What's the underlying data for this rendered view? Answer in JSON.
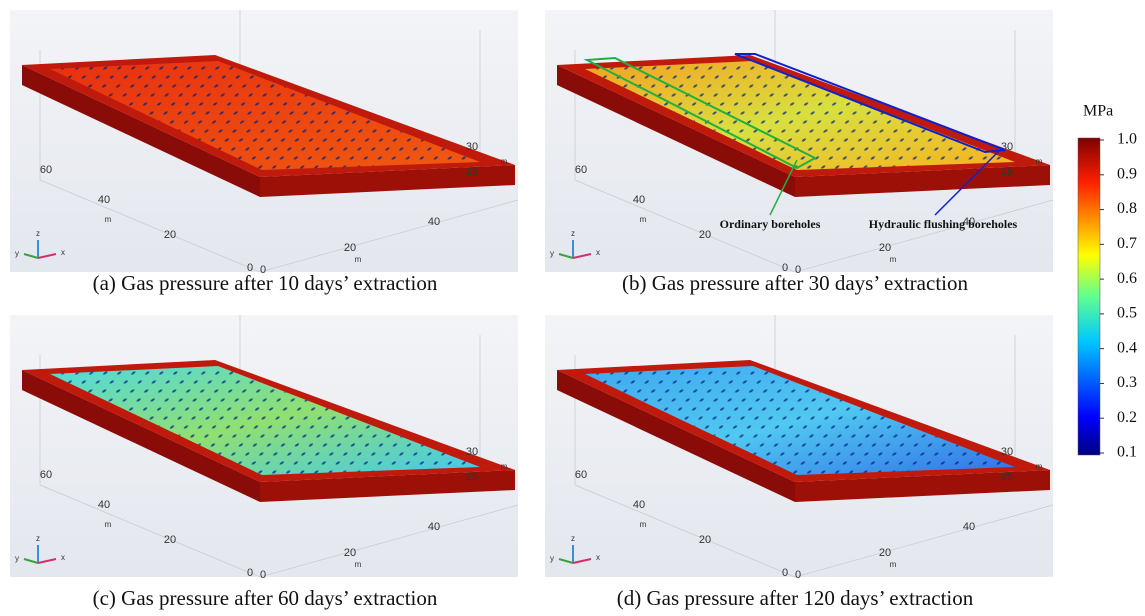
{
  "panels": [
    {
      "caption": "(a) Gas pressure after 10 days’ extraction",
      "z_ticks": [
        30,
        25
      ],
      "y_ticks": [
        60,
        40,
        20,
        0
      ],
      "x_ticks": [
        0,
        20,
        40
      ],
      "unit": "m",
      "triad": [
        "z",
        "y",
        "x"
      ]
    },
    {
      "caption": "(b) Gas pressure after 30 days’ extraction",
      "z_ticks": [
        30,
        25
      ],
      "y_ticks": [
        60,
        40,
        20,
        0
      ],
      "x_ticks": [
        0,
        20,
        40
      ],
      "unit": "m",
      "triad": [
        "z",
        "y",
        "x"
      ],
      "annotations": [
        "Ordinary  boreholes",
        "Hydraulic  flushing boreholes"
      ]
    },
    {
      "caption": "(c) Gas pressure after 60 days’ extraction",
      "z_ticks": [
        30,
        25
      ],
      "y_ticks": [
        60,
        40,
        20,
        0
      ],
      "x_ticks": [
        0,
        20,
        40
      ],
      "unit": "m",
      "triad": [
        "z",
        "y",
        "x"
      ]
    },
    {
      "caption": "(d) Gas pressure after 120 days’ extraction",
      "z_ticks": [
        30,
        25
      ],
      "y_ticks": [
        60,
        40,
        20,
        0
      ],
      "x_ticks": [
        0,
        20,
        40
      ],
      "unit": "m",
      "triad": [
        "z",
        "y",
        "x"
      ]
    }
  ],
  "colorbar": {
    "unit": "MPa",
    "range": [
      0.1,
      1
    ],
    "ticks": [
      {
        "value": 1,
        "label": "1.0"
      },
      0.9,
      0.8,
      0.7,
      0.6,
      0.5,
      0.4,
      0.3,
      0.2,
      0.1
    ]
  }
}
